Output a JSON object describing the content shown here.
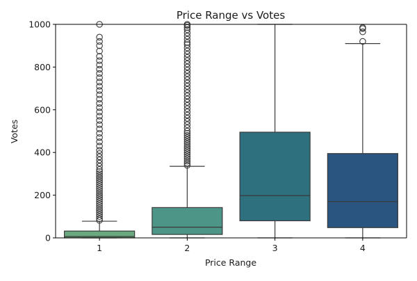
{
  "chart_data": {
    "type": "box",
    "title": "Price Range vs Votes",
    "xlabel": "Price Range",
    "ylabel": "Votes",
    "ylim": [
      0,
      1000
    ],
    "y_ticks": [
      0,
      200,
      400,
      600,
      800,
      1000
    ],
    "categories": [
      "1",
      "2",
      "3",
      "4"
    ],
    "grid": false,
    "legend": "none",
    "boxes": [
      {
        "category": "1",
        "color": "#6aa97f",
        "whisker_low": 0,
        "q1": 0,
        "median": 6,
        "q3": 32,
        "whisker_high": 78,
        "outliers": [
          82,
          90,
          100,
          110,
          120,
          130,
          140,
          150,
          160,
          170,
          180,
          190,
          200,
          210,
          220,
          230,
          240,
          250,
          260,
          270,
          280,
          290,
          300,
          310,
          320,
          335,
          350,
          365,
          380,
          395,
          410,
          430,
          450,
          470,
          490,
          510,
          530,
          550,
          570,
          590,
          610,
          630,
          650,
          670,
          690,
          710,
          730,
          750,
          770,
          790,
          810,
          830,
          850,
          875,
          900,
          920,
          940,
          1000
        ]
      },
      {
        "category": "2",
        "color": "#4c9587",
        "whisker_low": 0,
        "q1": 16,
        "median": 50,
        "q3": 142,
        "whisker_high": 335,
        "outliers": [
          340,
          350,
          360,
          370,
          380,
          390,
          400,
          410,
          420,
          430,
          440,
          450,
          460,
          470,
          480,
          490,
          500,
          515,
          530,
          545,
          560,
          575,
          590,
          605,
          620,
          635,
          650,
          665,
          680,
          695,
          710,
          725,
          740,
          755,
          770,
          785,
          800,
          815,
          830,
          845,
          860,
          875,
          890,
          905,
          915,
          930,
          945,
          960,
          975,
          985,
          995,
          1000
        ]
      },
      {
        "category": "3",
        "color": "#2f707e",
        "whisker_low": 0,
        "q1": 80,
        "median": 198,
        "q3": 495,
        "whisker_high": 1000,
        "outliers": []
      },
      {
        "category": "4",
        "color": "#2a5580",
        "whisker_low": 0,
        "q1": 48,
        "median": 170,
        "q3": 395,
        "whisker_high": 910,
        "outliers": [
          920,
          965,
          980,
          985
        ]
      }
    ]
  }
}
